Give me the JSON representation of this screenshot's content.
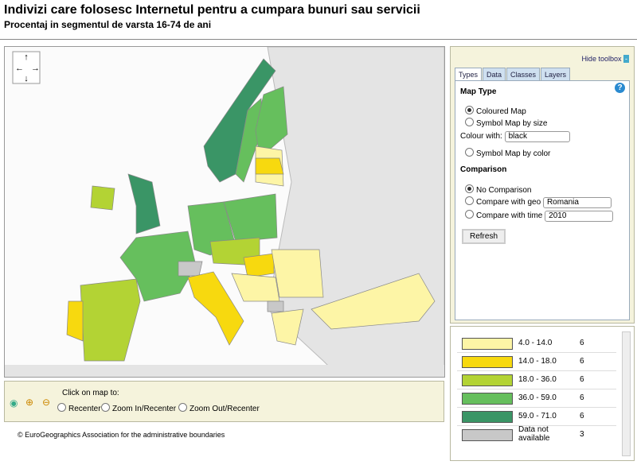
{
  "header": {
    "title": "Indivizi care folosesc Internetul pentru a cumpara bunuri sau servicii",
    "subtitle": "Procentaj in segmentul de varsta 16-74 de ani"
  },
  "toolbox": {
    "hide_label": "Hide toolbox",
    "tabs": [
      "Types",
      "Data",
      "Classes",
      "Layers"
    ],
    "help": "?",
    "map_type_heading": "Map Type",
    "coloured_map": "Coloured Map",
    "symbol_map_by_size": "Symbol Map by size",
    "colour_with_label": "Colour with:",
    "colour_with_value": "black",
    "symbol_map_by_color": "Symbol Map by color",
    "comparison_heading": "Comparison",
    "no_comparison": "No Comparison",
    "compare_with_geo": "Compare with geo",
    "geo_value": "Romania",
    "compare_with_time": "Compare with time",
    "time_value": "2010",
    "refresh": "Refresh"
  },
  "legend": {
    "rows": [
      {
        "label": "4.0 - 14.0",
        "count": 6,
        "color": "#fdf5a6"
      },
      {
        "label": "14.0 - 18.0",
        "count": 6,
        "color": "#f7d90f"
      },
      {
        "label": "18.0 - 36.0",
        "count": 6,
        "color": "#b3d334"
      },
      {
        "label": "36.0 - 59.0",
        "count": 6,
        "color": "#66bf5d"
      },
      {
        "label": "59.0 - 71.0",
        "count": 6,
        "color": "#3a9566"
      },
      {
        "label": "Data not available",
        "count": 3,
        "color": "#c8c8c8"
      }
    ]
  },
  "navigation": {
    "click_label": "Click on map to:",
    "options": [
      "Recenter",
      "Zoom In/Recenter",
      "Zoom Out/Recenter"
    ]
  },
  "footer": {
    "copyright": "© EuroGeographics Association for the administrative boundaries"
  }
}
